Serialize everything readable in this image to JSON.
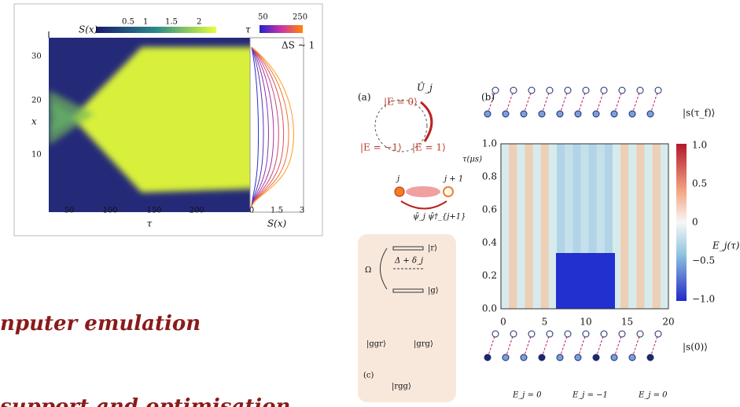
{
  "left_figure": {
    "colorbar_label": "S(x)",
    "colorbar_ticks": [
      "0.5",
      "1",
      "1.5",
      "2"
    ],
    "tau_label": "τ",
    "tau_ticks": [
      "50",
      "250"
    ],
    "y_label": "x",
    "y_ticks": [
      "30",
      "20",
      "10"
    ],
    "x_ticks": [
      "50",
      "100",
      "150",
      "200"
    ],
    "x_label": "τ",
    "side_ticks": [
      "0",
      "1.5",
      "3"
    ],
    "side_label": "S(x)",
    "delta_label": "ΔS ~ 1"
  },
  "right_figure": {
    "panel_a": "(a)",
    "operator": "Û_j",
    "state_e0": "|E = 0⟩",
    "state_em1": "|E = −1⟩",
    "state_e1": "|E = 1⟩",
    "site_j": "j",
    "site_j1": "j + 1",
    "hopping": "ψ̂_j ψ̂†_{j+1}",
    "level_r": "|r⟩",
    "detuning": "Δ + δ_j",
    "rabi": "Ω",
    "level_g": "|g⟩",
    "config_ggr": "|ggr⟩",
    "config_grg": "|grg⟩",
    "panel_c": "(c)",
    "config_rgg": "|rgg⟩",
    "panel_b": "(b)",
    "final_state": "|s(τ_f)⟩",
    "y_label": "τ(μs)",
    "y_ticks": [
      "1.0",
      "0.8",
      "0.6",
      "0.4",
      "0.2",
      "0.0"
    ],
    "x_ticks": [
      "0",
      "5",
      "10",
      "15",
      "20"
    ],
    "colorbar_ticks": [
      "1.0",
      "0.5",
      "0",
      "−0.5",
      "−1.0"
    ],
    "colorbar_label": "E_j(τ)",
    "initial_state": "|s(0)⟩",
    "bottom_labels": [
      "E_j = 0",
      "E_j = −1",
      "E_j = 0"
    ]
  },
  "slide_text": [
    "nputer emulation",
    "support and optimisation"
  ]
}
